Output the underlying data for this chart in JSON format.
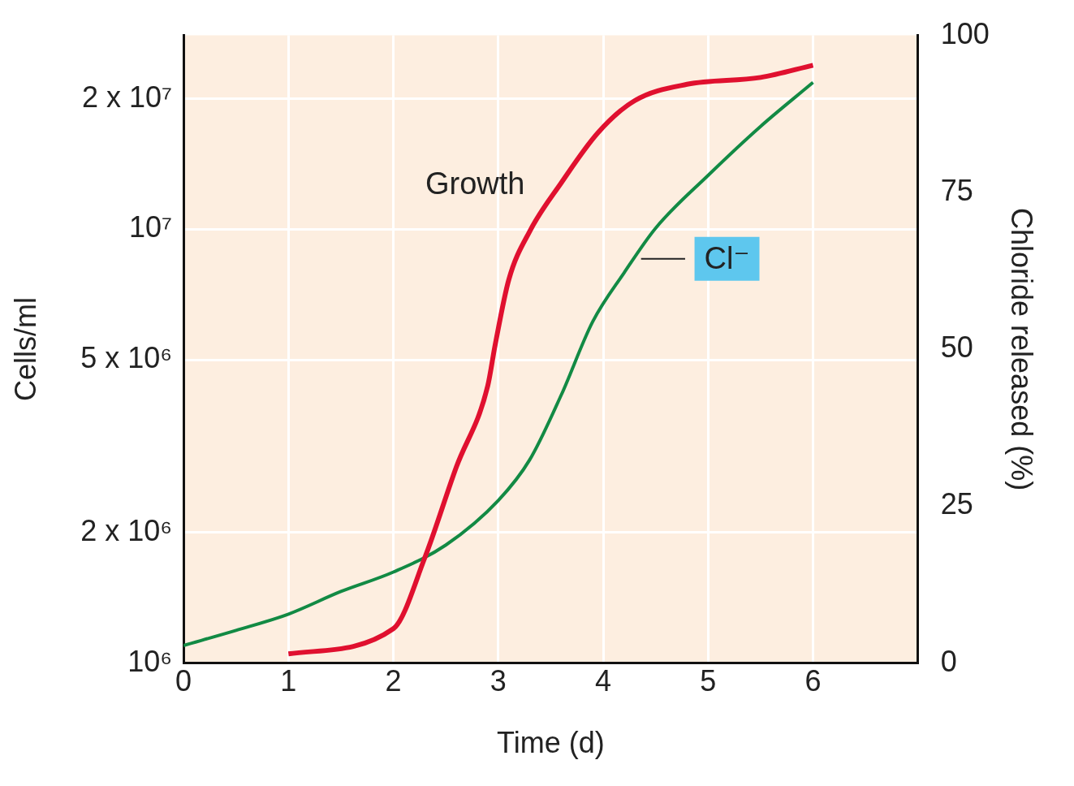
{
  "chart_data": {
    "type": "line",
    "xlabel": "Time (d)",
    "ylabel": "Cells/ml",
    "y2label": "Chloride released (%)",
    "xlim": [
      0,
      7
    ],
    "xticks": [
      0,
      1,
      2,
      3,
      4,
      5,
      6
    ],
    "ylim": [
      1000000,
      28000000
    ],
    "yticks": [
      {
        "value": 1000000,
        "label": "10⁶"
      },
      {
        "value": 2000000,
        "label": "2 x 10⁶"
      },
      {
        "value": 5000000,
        "label": "5 x 10⁶"
      },
      {
        "value": 10000000,
        "label": "10⁷"
      },
      {
        "value": 20000000,
        "label": "2 x 10⁷"
      }
    ],
    "y2lim": [
      0,
      100
    ],
    "y2ticks": [
      0,
      25,
      50,
      75,
      100
    ],
    "log": "y",
    "grid": true,
    "legend": false,
    "series": [
      {
        "name": "Growth",
        "color": "#e0102f",
        "x": [
          1,
          2,
          2.3,
          2.6,
          2.9,
          2.97,
          3.1,
          3.3,
          3.6,
          3.95,
          4.3,
          4.8,
          5.5,
          6
        ],
        "values": [
          1050000,
          1200000,
          1750000,
          2830000,
          4360000,
          5410000,
          7650000,
          9900000,
          12800000,
          16700000,
          19800000,
          21600000,
          22400000,
          23900000
        ]
      },
      {
        "name": "Cl⁻",
        "color": "#128a44",
        "axis": "y2",
        "x": [
          0,
          0.5,
          1,
          1.5,
          2,
          2.5,
          3,
          3.3,
          3.6,
          3.9,
          4.2,
          4.5,
          5,
          5.5,
          6
        ],
        "values": [
          2.8,
          5.2,
          7.8,
          11.4,
          14.5,
          18.8,
          25.9,
          32.4,
          42.7,
          54.4,
          62.2,
          69.3,
          77.7,
          85.5,
          92.5
        ]
      }
    ]
  }
}
